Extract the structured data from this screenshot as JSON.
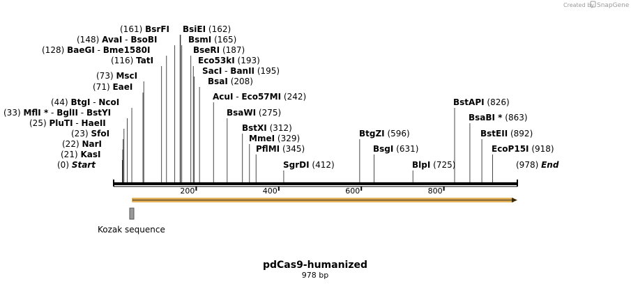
{
  "map": {
    "name": "pdCas9-humanized",
    "length_label": "978 bp",
    "length": 978,
    "credit": "Created by",
    "credit_brand": "SnapGene",
    "ruler_ticks": [
      "200",
      "400",
      "600",
      "800"
    ],
    "ruler_tick_values": [
      200,
      400,
      600,
      800
    ]
  },
  "sites": [
    {
      "pos": "(0)",
      "bp": 0,
      "names": [
        "Start"
      ],
      "italic": true
    },
    {
      "pos": "(21)",
      "bp": 21,
      "names": [
        "KasI"
      ]
    },
    {
      "pos": "(22)",
      "bp": 22,
      "names": [
        "NarI"
      ]
    },
    {
      "pos": "(23)",
      "bp": 23,
      "names": [
        "SfoI"
      ]
    },
    {
      "pos": "(25)",
      "bp": 25,
      "names": [
        "PluTI",
        "HaeII"
      ]
    },
    {
      "pos": "(33)",
      "bp": 33,
      "names": [
        "MflI *",
        "BglII",
        "BstYI"
      ]
    },
    {
      "pos": "(44)",
      "bp": 44,
      "names": [
        "BtgI",
        "NcoI"
      ]
    },
    {
      "pos": "(71)",
      "bp": 71,
      "names": [
        "EaeI"
      ]
    },
    {
      "pos": "(73)",
      "bp": 73,
      "names": [
        "MscI"
      ]
    },
    {
      "pos": "(116)",
      "bp": 116,
      "names": [
        "TatI"
      ]
    },
    {
      "pos": "(128)",
      "bp": 128,
      "names": [
        "BaeGI",
        "Bme1580I"
      ]
    },
    {
      "pos": "(148)",
      "bp": 148,
      "names": [
        "AvaI",
        "BsoBI"
      ]
    },
    {
      "pos": "(161)",
      "bp": 161,
      "names": [
        "BsrFI"
      ]
    },
    {
      "pos": "(162)",
      "bp": 162,
      "names": [
        "BsiEI"
      ]
    },
    {
      "pos": "(165)",
      "bp": 165,
      "names": [
        "BsmI"
      ]
    },
    {
      "pos": "(187)",
      "bp": 187,
      "names": [
        "BseRI"
      ]
    },
    {
      "pos": "(193)",
      "bp": 193,
      "names": [
        "Eco53kI"
      ]
    },
    {
      "pos": "(195)",
      "bp": 195,
      "names": [
        "SacI",
        "BanII"
      ]
    },
    {
      "pos": "(208)",
      "bp": 208,
      "names": [
        "BsaI"
      ]
    },
    {
      "pos": "(242)",
      "bp": 242,
      "names": [
        "AcuI",
        "Eco57MI"
      ]
    },
    {
      "pos": "(275)",
      "bp": 275,
      "names": [
        "BsaWI"
      ]
    },
    {
      "pos": "(312)",
      "bp": 312,
      "names": [
        "BstXI"
      ]
    },
    {
      "pos": "(329)",
      "bp": 329,
      "names": [
        "MmeI"
      ]
    },
    {
      "pos": "(345)",
      "bp": 345,
      "names": [
        "PflMI"
      ]
    },
    {
      "pos": "(412)",
      "bp": 412,
      "names": [
        "SgrDI"
      ]
    },
    {
      "pos": "(596)",
      "bp": 596,
      "names": [
        "BtgZI"
      ]
    },
    {
      "pos": "(631)",
      "bp": 631,
      "names": [
        "BsgI"
      ]
    },
    {
      "pos": "(725)",
      "bp": 725,
      "names": [
        "BlpI"
      ]
    },
    {
      "pos": "(826)",
      "bp": 826,
      "names": [
        "BstAPI"
      ]
    },
    {
      "pos": "(863)",
      "bp": 863,
      "names": [
        "BsaBI *"
      ]
    },
    {
      "pos": "(892)",
      "bp": 892,
      "names": [
        "BstEII"
      ]
    },
    {
      "pos": "(918)",
      "bp": 918,
      "names": [
        "EcoP15I"
      ]
    },
    {
      "pos": "(978)",
      "bp": 978,
      "names": [
        "End"
      ],
      "italic": true
    }
  ],
  "features": [
    {
      "name": "Kozak sequence",
      "start": 40,
      "end": 50,
      "color": "#9a9a9a"
    }
  ],
  "cds": {
    "start": 40,
    "end": 978,
    "color": "#f5a623"
  }
}
